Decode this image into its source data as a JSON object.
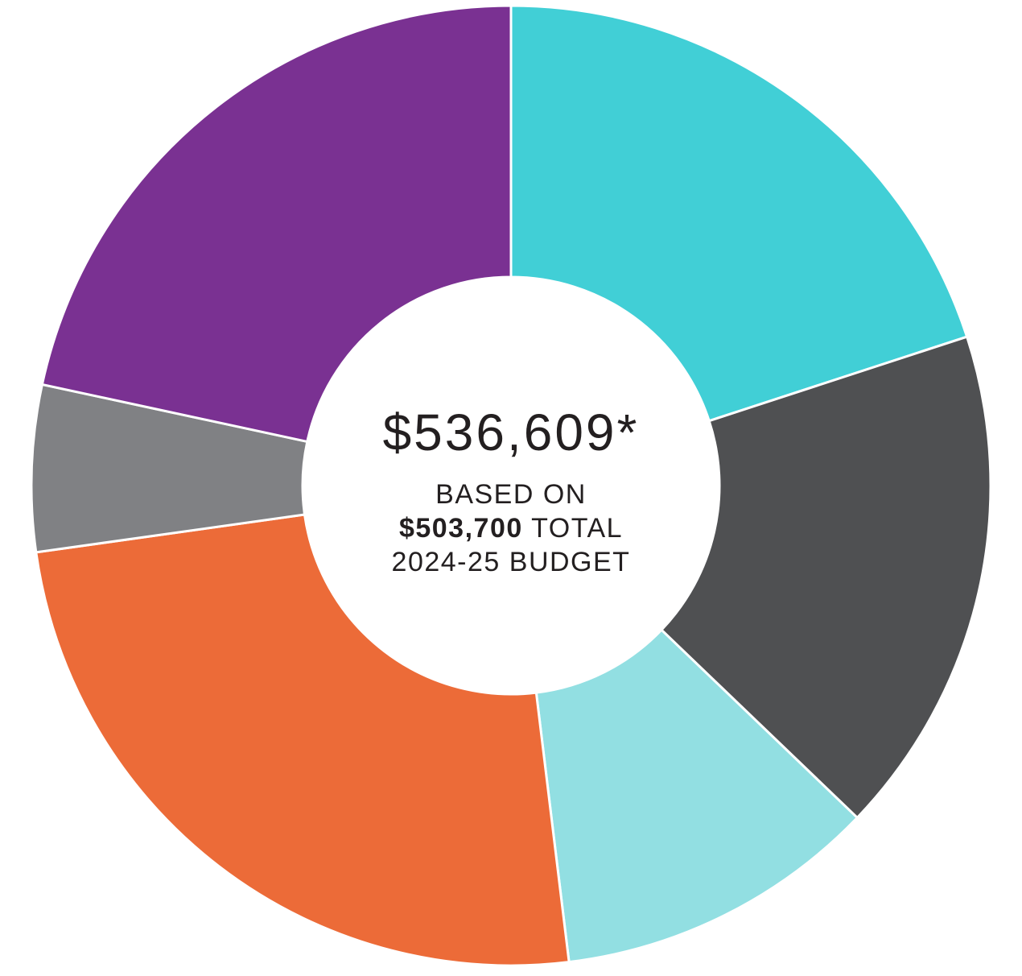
{
  "chart_data": {
    "type": "pie",
    "donut": true,
    "start_angle_deg": 0,
    "direction": "clockwise",
    "slices": [
      {
        "value": 20.7,
        "color": "#41cfd6"
      },
      {
        "value": 17.8,
        "color": "#4f5052"
      },
      {
        "value": 11.3,
        "color": "#92dfe2"
      },
      {
        "value": 25.6,
        "color": "#ec6b38"
      },
      {
        "value": 5.8,
        "color": "#808184"
      },
      {
        "value": 22.4,
        "color": "#7a3192"
      }
    ],
    "separator_color": "#ffffff"
  },
  "center": {
    "amount": "$536,609*",
    "line1": "BASED ON",
    "line2_bold": "$503,700",
    "line2_rest": " TOTAL",
    "line3": "2024-25 BUDGET"
  }
}
